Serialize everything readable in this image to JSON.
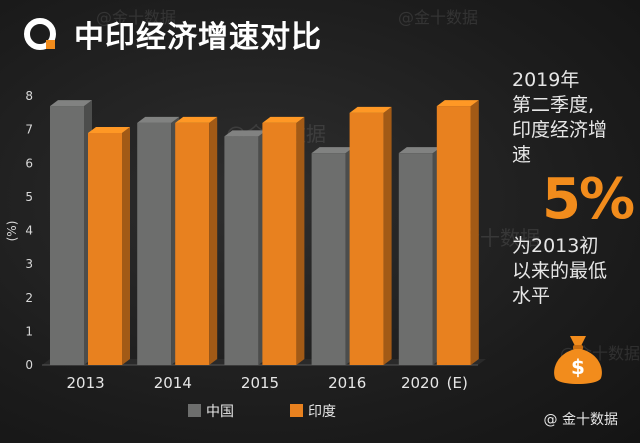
{
  "title": "中印经济增速对比",
  "watermark": "@金十数据",
  "source": "@ 金十数据",
  "note": {
    "line1": "2019年",
    "line2": "第二季度,",
    "line3": "印度经济增",
    "line4": "速",
    "highlight": "5%",
    "line5": "为2013初",
    "line6": "以来的最低",
    "line7": "水平"
  },
  "icons": {
    "logo": "brand-logo-icon",
    "moneybag": "money-bag-icon"
  },
  "colors": {
    "china": "#6d6e6d",
    "india": "#e8811f",
    "accent": "#f28c1c"
  },
  "chart_data": {
    "type": "bar",
    "categories": [
      "2013",
      "2014",
      "2015",
      "2016",
      "2020 (E)"
    ],
    "series": [
      {
        "name": "中国",
        "values": [
          7.7,
          7.2,
          6.8,
          6.3,
          6.3
        ]
      },
      {
        "name": "印度",
        "values": [
          6.9,
          7.2,
          7.2,
          7.5,
          7.7
        ]
      }
    ],
    "ylabel": "(%)",
    "ylim": [
      0,
      8
    ],
    "yticks": [
      "0",
      "1",
      "2",
      "3",
      "4",
      "5",
      "6",
      "7",
      "8"
    ],
    "legend_position": "bottom"
  }
}
